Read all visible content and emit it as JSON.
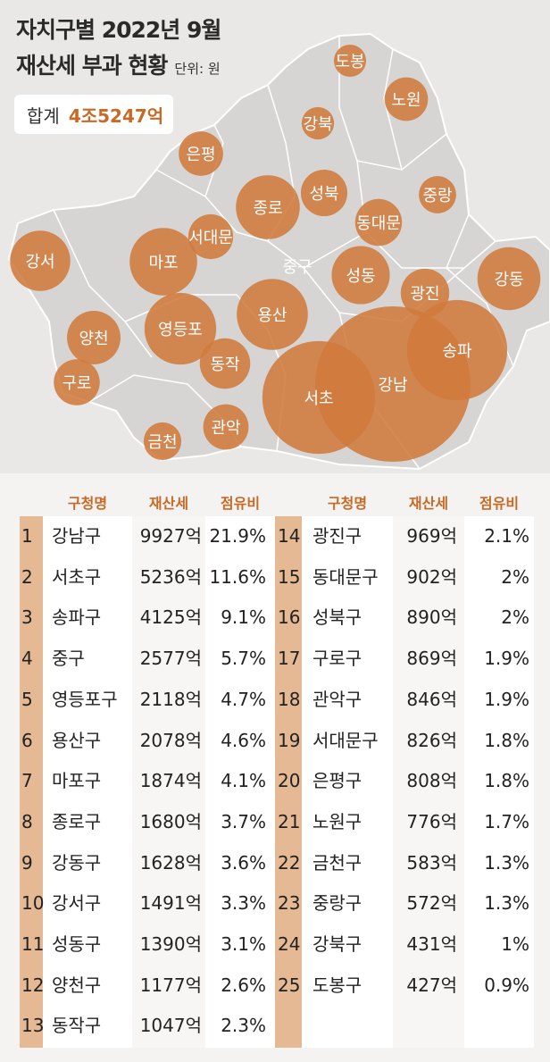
{
  "title": {
    "line1": "자치구별 2022년 9월",
    "line2": "재산세 부과 현황",
    "unit": "단위: 원"
  },
  "total": {
    "label": "합계",
    "value": "4조5247억"
  },
  "colors": {
    "bubble": "#d07a3c",
    "accent": "#c86a26",
    "rank_bg": "#e6b995"
  },
  "table_headers": {
    "name": "구청명",
    "tax": "재산세",
    "share": "점유비"
  },
  "chart_data": {
    "type": "table",
    "bubble_labels": [
      "강남",
      "서초",
      "송파",
      "중구",
      "영등포",
      "용산",
      "마포",
      "종로",
      "강동",
      "강서",
      "성동",
      "양천",
      "동작",
      "광진",
      "동대문",
      "성북",
      "구로",
      "관악",
      "서대문",
      "은평",
      "노원",
      "금천",
      "중랑",
      "강북",
      "도봉"
    ],
    "rows": [
      {
        "rank": "1",
        "name": "강남구",
        "tax": "9927억",
        "share": "21.9%",
        "tax_eok": 9927
      },
      {
        "rank": "2",
        "name": "서초구",
        "tax": "5236억",
        "share": "11.6%",
        "tax_eok": 5236
      },
      {
        "rank": "3",
        "name": "송파구",
        "tax": "4125억",
        "share": "9.1%",
        "tax_eok": 4125
      },
      {
        "rank": "4",
        "name": "중구",
        "tax": "2577억",
        "share": "5.7%",
        "tax_eok": 2577
      },
      {
        "rank": "5",
        "name": "영등포구",
        "tax": "2118억",
        "share": "4.7%",
        "tax_eok": 2118
      },
      {
        "rank": "6",
        "name": "용산구",
        "tax": "2078억",
        "share": "4.6%",
        "tax_eok": 2078
      },
      {
        "rank": "7",
        "name": "마포구",
        "tax": "1874억",
        "share": "4.1%",
        "tax_eok": 1874
      },
      {
        "rank": "8",
        "name": "종로구",
        "tax": "1680억",
        "share": "3.7%",
        "tax_eok": 1680
      },
      {
        "rank": "9",
        "name": "강동구",
        "tax": "1628억",
        "share": "3.6%",
        "tax_eok": 1628
      },
      {
        "rank": "10",
        "name": "강서구",
        "tax": "1491억",
        "share": "3.3%",
        "tax_eok": 1491
      },
      {
        "rank": "11",
        "name": "성동구",
        "tax": "1390억",
        "share": "3.1%",
        "tax_eok": 1390
      },
      {
        "rank": "12",
        "name": "양천구",
        "tax": "1177억",
        "share": "2.6%",
        "tax_eok": 1177
      },
      {
        "rank": "13",
        "name": "동작구",
        "tax": "1047억",
        "share": "2.3%",
        "tax_eok": 1047
      },
      {
        "rank": "14",
        "name": "광진구",
        "tax": "969억",
        "share": "2.1%",
        "tax_eok": 969
      },
      {
        "rank": "15",
        "name": "동대문구",
        "tax": "902억",
        "share": "2%",
        "tax_eok": 902
      },
      {
        "rank": "16",
        "name": "성북구",
        "tax": "890억",
        "share": "2%",
        "tax_eok": 890
      },
      {
        "rank": "17",
        "name": "구로구",
        "tax": "869억",
        "share": "1.9%",
        "tax_eok": 869
      },
      {
        "rank": "18",
        "name": "관악구",
        "tax": "846억",
        "share": "1.9%",
        "tax_eok": 846
      },
      {
        "rank": "19",
        "name": "서대문구",
        "tax": "826억",
        "share": "1.8%",
        "tax_eok": 826
      },
      {
        "rank": "20",
        "name": "은평구",
        "tax": "808억",
        "share": "1.8%",
        "tax_eok": 808
      },
      {
        "rank": "21",
        "name": "노원구",
        "tax": "776억",
        "share": "1.7%",
        "tax_eok": 776
      },
      {
        "rank": "22",
        "name": "금천구",
        "tax": "583억",
        "share": "1.3%",
        "tax_eok": 583
      },
      {
        "rank": "23",
        "name": "중랑구",
        "tax": "572억",
        "share": "1.3%",
        "tax_eok": 572
      },
      {
        "rank": "24",
        "name": "강북구",
        "tax": "431억",
        "share": "1%",
        "tax_eok": 431
      },
      {
        "rank": "25",
        "name": "도봉구",
        "tax": "427억",
        "share": "0.9%",
        "tax_eok": 427
      }
    ]
  }
}
